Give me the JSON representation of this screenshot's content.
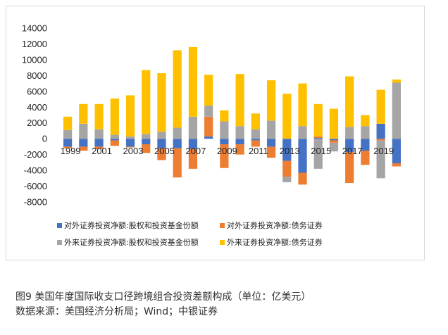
{
  "caption": {
    "figure_title": "图9  美国年度国际收支口径跨境组合投资差额构成（单位：亿美元）",
    "source": "数据来源：美国经济分析局；Wind；中银证券"
  },
  "chart_data": {
    "type": "bar",
    "stacked": true,
    "title": "",
    "xlabel": "",
    "ylabel": "",
    "ylim": [
      -8000,
      14000
    ],
    "yticks": [
      14000,
      12000,
      10000,
      8000,
      6000,
      4000,
      2000,
      0,
      -2000,
      -4000,
      -6000,
      -8000
    ],
    "grid": false,
    "legend_position": "bottom",
    "categories": [
      "1999",
      "2000",
      "2001",
      "2002",
      "2003",
      "2004",
      "2005",
      "2006",
      "2007",
      "2008",
      "2009",
      "2010",
      "2011",
      "2012",
      "2013",
      "2014",
      "2015",
      "2016",
      "2017",
      "2018",
      "2019",
      "2020"
    ],
    "xtick_labels": [
      "1999",
      "2001",
      "2003",
      "2005",
      "2007",
      "2009",
      "2011",
      "2013",
      "2015",
      "2017",
      "2019"
    ],
    "series": [
      {
        "name": "对外证券投资净额:股权和投资基金份额",
        "color": "#4472C4",
        "values": [
          -1000,
          -1000,
          -1000,
          -200,
          -1000,
          -700,
          -1200,
          -1200,
          -1300,
          300,
          -700,
          -700,
          -200,
          -1000,
          -2800,
          -4300,
          100,
          -200,
          -1700,
          -1500,
          1900,
          -3100
        ]
      },
      {
        "name": "对外证券投资净额:债务证券",
        "color": "#ED7D31",
        "values": [
          -200,
          -500,
          -300,
          -700,
          -100,
          -1100,
          -1500,
          -3700,
          -2500,
          2500,
          -3000,
          -1300,
          -800,
          -1400,
          -2000,
          -1500,
          200,
          -300,
          -3900,
          -1800,
          -200,
          -400
        ]
      },
      {
        "name": "外来证券投资净额:股权和投资基金份额",
        "color": "#A5A5A5",
        "values": [
          1100,
          1900,
          1200,
          500,
          300,
          600,
          900,
          1400,
          2800,
          1400,
          2200,
          1600,
          1200,
          2300,
          -700,
          1600,
          -3800,
          -1100,
          1500,
          1600,
          -4800,
          7100
        ]
      },
      {
        "name": "外来证券投资净额:债务证券",
        "color": "#FFC000",
        "values": [
          1700,
          2500,
          3200,
          4600,
          5200,
          8100,
          7400,
          9800,
          8800,
          3900,
          1400,
          6600,
          2000,
          5100,
          5700,
          5400,
          4100,
          3800,
          6400,
          1400,
          4300,
          400
        ]
      }
    ]
  }
}
